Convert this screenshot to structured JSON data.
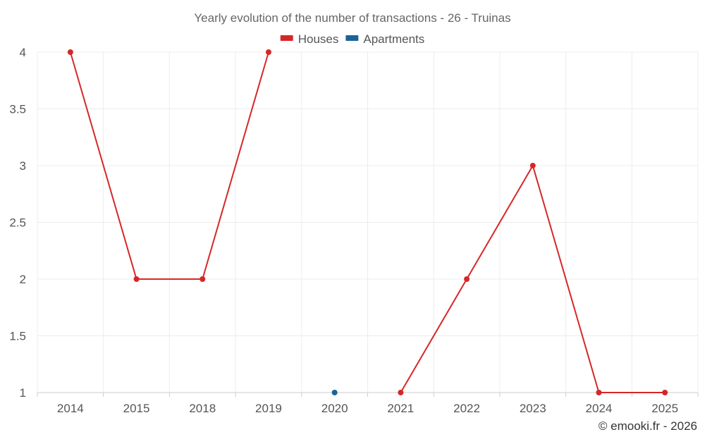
{
  "chart_data": {
    "type": "line",
    "title": "Yearly evolution of the number of transactions - 26 - Truinas",
    "categories": [
      "2014",
      "2015",
      "2018",
      "2019",
      "2020",
      "2021",
      "2022",
      "2023",
      "2024",
      "2025"
    ],
    "series": [
      {
        "name": "Houses",
        "color": "#d62728",
        "values": [
          4,
          2,
          2,
          4,
          null,
          1,
          2,
          3,
          1,
          1
        ]
      },
      {
        "name": "Apartments",
        "color": "#1a6496",
        "values": [
          null,
          null,
          null,
          null,
          1,
          null,
          null,
          null,
          null,
          null
        ]
      }
    ],
    "ylim": [
      1,
      4
    ],
    "yticks": [
      1,
      1.5,
      2,
      2.5,
      3,
      3.5,
      4
    ],
    "grid": true,
    "legend_position": "top-center"
  },
  "credit": "© emooki.fr - 2026"
}
